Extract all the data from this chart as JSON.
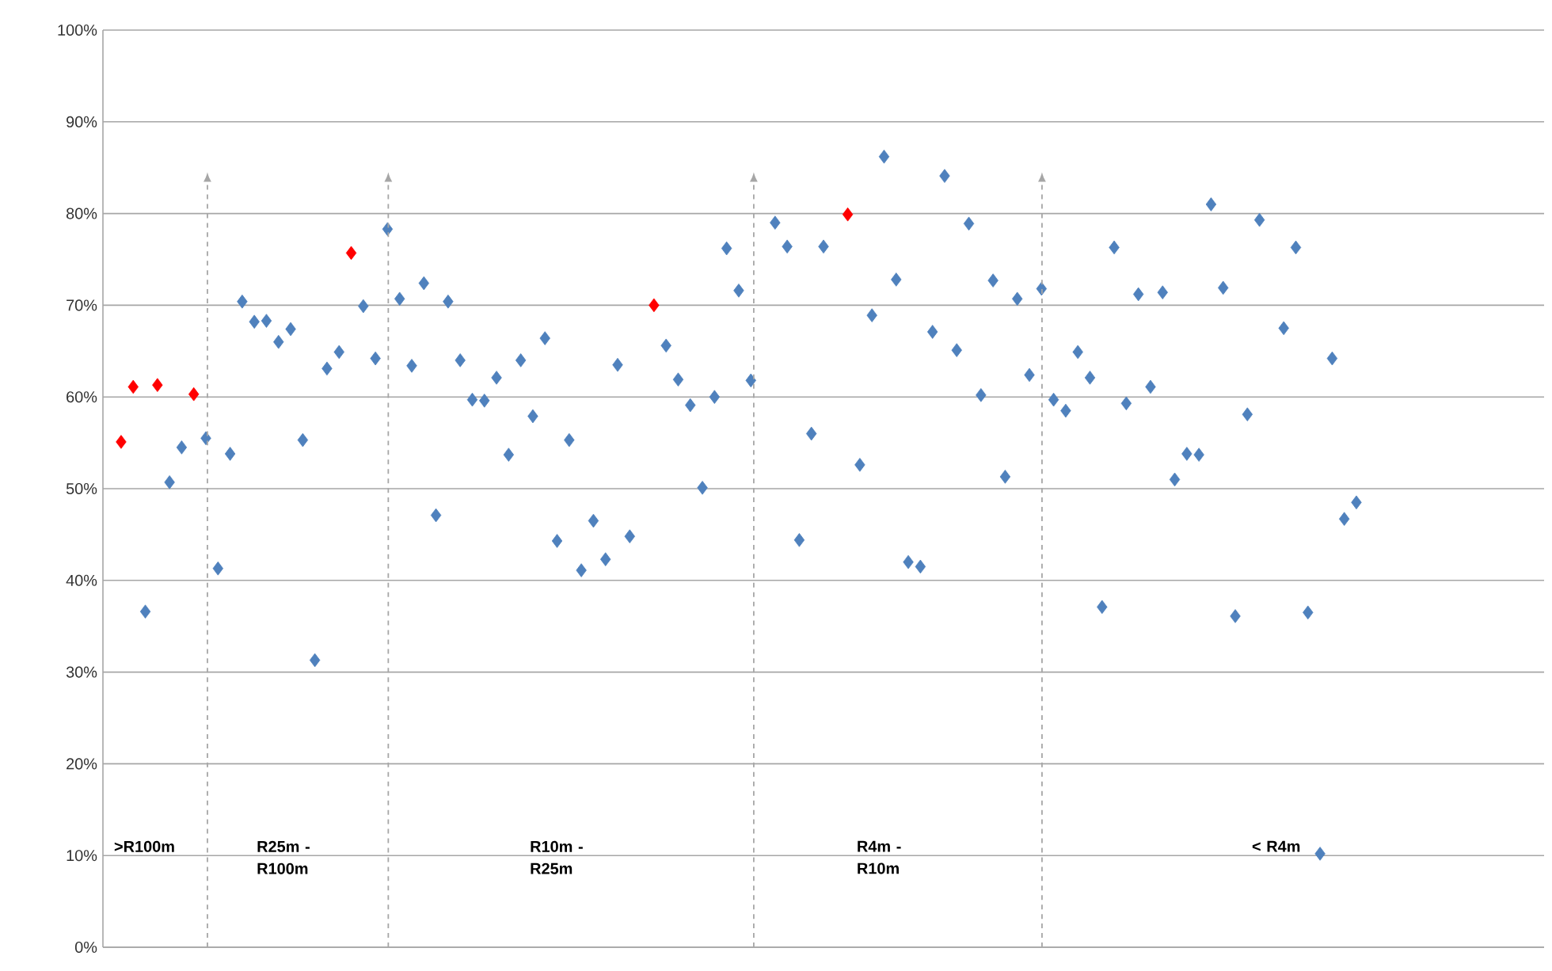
{
  "chart_data": {
    "type": "scatter",
    "categories": [
      null,
      null,
      null,
      null,
      null,
      null,
      null,
      null,
      null,
      null,
      null,
      null,
      null,
      null,
      null,
      null,
      null,
      null,
      null,
      null,
      null,
      null,
      null,
      null,
      null,
      null,
      null,
      null,
      null,
      null,
      null,
      null,
      null,
      null,
      null,
      null,
      null,
      null,
      null,
      null,
      null,
      null,
      null,
      null,
      null,
      null,
      null,
      null,
      null,
      null,
      null,
      null,
      null,
      null,
      null,
      null,
      null,
      null,
      null,
      null,
      null,
      null,
      null,
      null,
      null,
      null,
      null,
      null,
      null,
      null,
      null,
      null,
      null,
      null,
      null,
      null,
      null,
      null,
      null,
      null,
      null,
      null,
      null,
      null,
      null,
      null,
      null,
      null,
      null,
      null,
      null,
      null,
      null,
      null,
      null,
      null,
      null,
      null,
      null,
      null,
      null,
      null,
      null,
      null,
      null,
      null,
      null,
      null,
      null,
      null,
      null,
      null,
      null,
      null,
      null,
      null,
      null,
      null,
      null
    ],
    "series": [
      {
        "color": "#4f81bd",
        "values": [
          null,
          null,
          null,
          36.6,
          null,
          50.7,
          54.5,
          null,
          55.5,
          41.3,
          53.8,
          70.4,
          68.2,
          68.3,
          66.0,
          67.4,
          55.3,
          31.3,
          63.1,
          64.9,
          null,
          69.9,
          64.2,
          78.3,
          70.7,
          63.4,
          72.4,
          47.1,
          70.4,
          64.0,
          59.7,
          59.6,
          62.1,
          53.7,
          64.0,
          57.9,
          66.4,
          44.3,
          55.3,
          41.1,
          46.5,
          42.3,
          63.5,
          44.8,
          null,
          null,
          65.6,
          61.9,
          59.1,
          50.1,
          60.0,
          76.2,
          71.6,
          61.8,
          null,
          79.0,
          76.4,
          44.4,
          56.0,
          76.4,
          null,
          null,
          52.6,
          68.9,
          86.2,
          72.8,
          42.0,
          41.5,
          67.1,
          84.1,
          65.1,
          78.9,
          60.2,
          72.7,
          51.3,
          70.7,
          62.4,
          71.8,
          59.7,
          58.5,
          64.9,
          62.1,
          37.1,
          76.3,
          59.3,
          71.2,
          61.1,
          71.4,
          51.0,
          53.8,
          53.7,
          81.0,
          71.9,
          36.1,
          58.1,
          79.3,
          null,
          67.5,
          76.3,
          36.5,
          10.2,
          64.2,
          46.7,
          48.5,
          null,
          null,
          null,
          null,
          null,
          null,
          null,
          null,
          null,
          null,
          null,
          null,
          null,
          null,
          null
        ]
      },
      {
        "color": "#ff0000",
        "values": [
          null,
          55.1,
          61.1,
          null,
          61.3,
          null,
          null,
          60.3,
          null,
          null,
          null,
          null,
          null,
          null,
          null,
          null,
          null,
          null,
          null,
          null,
          75.7,
          null,
          null,
          null,
          null,
          null,
          null,
          null,
          null,
          null,
          null,
          null,
          null,
          null,
          null,
          null,
          null,
          null,
          null,
          null,
          null,
          null,
          null,
          null,
          null,
          70.0,
          null,
          null,
          null,
          null,
          null,
          null,
          null,
          null,
          null,
          null,
          null,
          null,
          null,
          null,
          null,
          79.9,
          null,
          null,
          null,
          null,
          null,
          null,
          null,
          null,
          null,
          null,
          null,
          null,
          null,
          null,
          null,
          null,
          null,
          null,
          null,
          null,
          null,
          null,
          null,
          null,
          null,
          null,
          null,
          null,
          null,
          null,
          null,
          null,
          null,
          null,
          null,
          null,
          null,
          null,
          null,
          null,
          null,
          null,
          null,
          null,
          null,
          null,
          null,
          null,
          null,
          null,
          null,
          null,
          null,
          null,
          null,
          null,
          null
        ]
      }
    ],
    "ylim": [
      0,
      100
    ],
    "yticks": [
      {
        "value": 0,
        "label": "0%"
      },
      {
        "value": 10,
        "label": "10%"
      },
      {
        "value": 20,
        "label": "20%"
      },
      {
        "value": 30,
        "label": "30%"
      },
      {
        "value": 40,
        "label": "40%"
      },
      {
        "value": 50,
        "label": "50%"
      },
      {
        "value": 60,
        "label": "60%"
      },
      {
        "value": 70,
        "label": "70%"
      },
      {
        "value": 80,
        "label": "80%"
      },
      {
        "value": 90,
        "label": "90%"
      },
      {
        "value": 100,
        "label": "100%"
      }
    ],
    "tick_labels": "y",
    "grid": "y",
    "marker": "diamond",
    "annotations": [
      ">R100m",
      "R25m - R100m",
      "R10m - R25m",
      "R4m - R10m",
      "< R4m"
    ]
  }
}
